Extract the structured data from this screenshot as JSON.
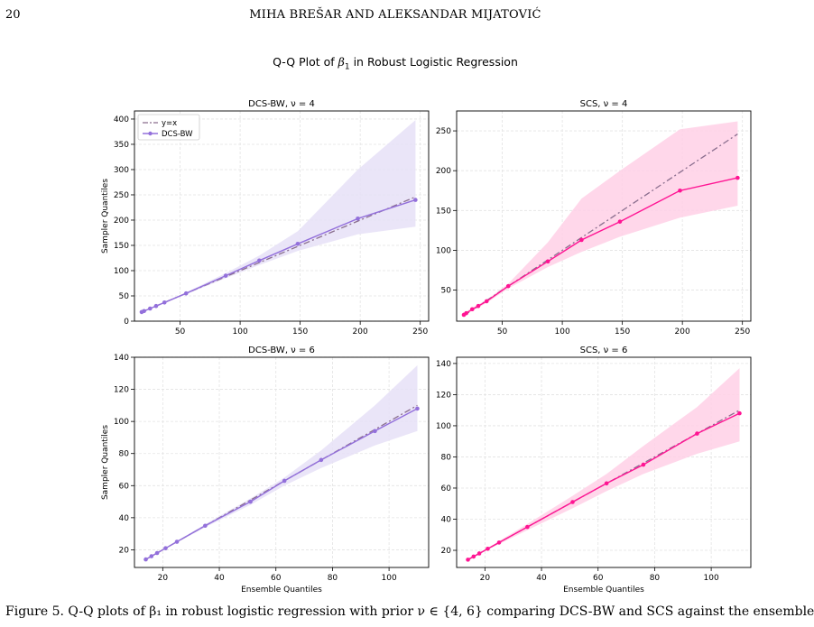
{
  "header": {
    "page_number": "20",
    "running_title": "MIHA BREŠAR AND ALEKSANDAR MIJATOVIĆ"
  },
  "figure": {
    "suptitle_prefix": "Q-Q Plot of ",
    "suptitle_symbol": "β",
    "suptitle_subscript": "1",
    "suptitle_suffix": " in Robust Logistic Regression"
  },
  "caption": {
    "text": "Figure 5. Q-Q plots of β₁ in robust logistic regression with prior ν ∈ {4, 6} comparing DCS-BW and SCS against the ensemble"
  },
  "colors": {
    "dcs": "#9370db",
    "dcs_band": "#e6e1f7",
    "scs": "#ff1493",
    "scs_band": "#ffd0e6",
    "yx": "#8a6e8e",
    "grid": "#e3e3e3"
  },
  "chart_data": [
    {
      "type": "line",
      "title": "DCS-BW, ν = 4",
      "xlabel": "",
      "ylabel": "Sampler Quantiles",
      "xlim": [
        12,
        257
      ],
      "ylim": [
        0,
        416
      ],
      "xticks": [
        50,
        100,
        150,
        200,
        250
      ],
      "yticks": [
        0,
        50,
        100,
        150,
        200,
        250,
        300,
        350,
        400
      ],
      "grid": true,
      "legend": "top-left",
      "legend_entries": [
        "y=x",
        "DCS-BW"
      ],
      "series": [
        {
          "name": "DCS-BW",
          "color": "#9370db",
          "x": [
            18,
            20,
            25,
            30,
            37,
            55,
            88,
            116,
            148,
            198,
            246
          ],
          "y": [
            18,
            20,
            25,
            30,
            37,
            55,
            90,
            120,
            153,
            203,
            240
          ],
          "band_low": [
            17,
            19,
            24,
            29,
            36,
            53,
            85,
            111,
            139,
            172,
            187
          ],
          "band_high": [
            19,
            21,
            26,
            31,
            38,
            57,
            95,
            130,
            178,
            300,
            398
          ]
        }
      ],
      "reference": {
        "name": "y=x",
        "from": 18,
        "to": 246
      }
    },
    {
      "type": "line",
      "title": "SCS, ν = 4",
      "xlabel": "",
      "ylabel": "",
      "xlim": [
        12,
        257
      ],
      "ylim": [
        11,
        275
      ],
      "xticks": [
        50,
        100,
        150,
        200,
        250
      ],
      "yticks": [
        50,
        100,
        150,
        200,
        250
      ],
      "grid": true,
      "series": [
        {
          "name": "SCS",
          "color": "#ff1493",
          "x": [
            18,
            20,
            25,
            30,
            37,
            55,
            88,
            116,
            148,
            198,
            246
          ],
          "y": [
            19,
            21,
            26,
            30,
            36,
            55,
            86,
            113,
            136,
            175,
            191
          ],
          "band_low": [
            17,
            19,
            24,
            28,
            34,
            52,
            79,
            98,
            117,
            141,
            156
          ],
          "band_high": [
            21,
            23,
            28,
            32,
            38,
            58,
            110,
            165,
            200,
            252,
            262
          ]
        }
      ],
      "reference": {
        "name": "y=x",
        "from": 18,
        "to": 246
      }
    },
    {
      "type": "line",
      "title": "DCS-BW, ν = 6",
      "xlabel": "Ensemble Quantiles",
      "ylabel": "Sampler Quantiles",
      "xlim": [
        10,
        114
      ],
      "ylim": [
        9,
        140
      ],
      "xticks": [
        20,
        40,
        60,
        80,
        100
      ],
      "yticks": [
        20,
        40,
        60,
        80,
        100,
        120,
        140
      ],
      "grid": true,
      "series": [
        {
          "name": "DCS-BW",
          "color": "#9370db",
          "x": [
            14,
            16,
            18,
            21,
            25,
            35,
            51,
            63,
            76,
            95,
            110
          ],
          "y": [
            14,
            16,
            18,
            21,
            25,
            35,
            50,
            63,
            76,
            94,
            108
          ],
          "band_low": [
            13.5,
            15.5,
            17.5,
            20.5,
            24.5,
            34,
            48,
            60,
            71,
            85,
            94
          ],
          "band_high": [
            14.5,
            16.5,
            18.5,
            21.5,
            25.5,
            36,
            52,
            65,
            82,
            110,
            135
          ]
        }
      ],
      "reference": {
        "name": "y=x",
        "from": 14,
        "to": 110
      }
    },
    {
      "type": "line",
      "title": "SCS, ν = 6",
      "xlabel": "Ensemble Quantiles",
      "ylabel": "",
      "xlim": [
        10,
        114
      ],
      "ylim": [
        9,
        144
      ],
      "xticks": [
        20,
        40,
        60,
        80,
        100
      ],
      "yticks": [
        20,
        40,
        60,
        80,
        100,
        120,
        140
      ],
      "grid": true,
      "series": [
        {
          "name": "SCS",
          "color": "#ff1493",
          "x": [
            14,
            16,
            18,
            21,
            25,
            35,
            51,
            63,
            76,
            95,
            110
          ],
          "y": [
            14,
            16,
            18,
            21,
            25,
            35,
            51,
            63,
            75,
            95,
            108
          ],
          "band_low": [
            13.5,
            15.5,
            17.5,
            20.5,
            24,
            33,
            47,
            58,
            69,
            82,
            90
          ],
          "band_high": [
            14.5,
            16.5,
            18.5,
            21.5,
            26,
            37,
            55,
            69,
            87,
            112,
            137
          ]
        }
      ],
      "reference": {
        "name": "y=x",
        "from": 14,
        "to": 110
      }
    }
  ]
}
